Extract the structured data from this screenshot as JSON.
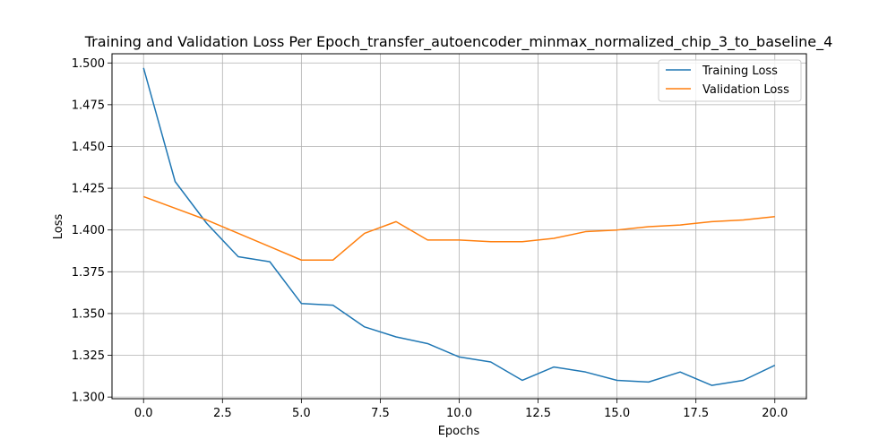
{
  "chart_data": {
    "type": "line",
    "title": "Training and Validation Loss Per Epoch_transfer_autoencoder_minmax_normalized_chip_3_to_baseline_4",
    "xlabel": "Epochs",
    "ylabel": "Loss",
    "xlim": [
      -1.0,
      21.0
    ],
    "ylim": [
      1.299,
      1.5055
    ],
    "xticks": [
      0.0,
      2.5,
      5.0,
      7.5,
      10.0,
      12.5,
      15.0,
      17.5,
      20.0
    ],
    "xtick_labels": [
      "0.0",
      "2.5",
      "5.0",
      "7.5",
      "10.0",
      "12.5",
      "15.0",
      "17.5",
      "20.0"
    ],
    "yticks": [
      1.3,
      1.325,
      1.35,
      1.375,
      1.4,
      1.425,
      1.45,
      1.475,
      1.5
    ],
    "ytick_labels": [
      "1.300",
      "1.325",
      "1.350",
      "1.375",
      "1.400",
      "1.425",
      "1.450",
      "1.475",
      "1.500"
    ],
    "grid": true,
    "legend_position": "top-right",
    "x": [
      0,
      1,
      2,
      3,
      4,
      5,
      6,
      7,
      8,
      9,
      10,
      11,
      12,
      13,
      14,
      15,
      16,
      17,
      18,
      19,
      20
    ],
    "series": [
      {
        "name": "Training Loss",
        "color": "#1f77b4",
        "values": [
          1.497,
          1.429,
          1.404,
          1.384,
          1.381,
          1.356,
          1.355,
          1.342,
          1.336,
          1.332,
          1.324,
          1.321,
          1.31,
          1.318,
          1.315,
          1.31,
          1.309,
          1.315,
          1.307,
          1.31,
          1.319
        ]
      },
      {
        "name": "Validation Loss",
        "color": "#ff7f0e",
        "values": [
          1.42,
          1.413,
          1.406,
          1.398,
          1.39,
          1.382,
          1.382,
          1.398,
          1.405,
          1.394,
          1.394,
          1.393,
          1.393,
          1.395,
          1.399,
          1.4,
          1.402,
          1.403,
          1.405,
          1.406,
          1.408
        ]
      }
    ]
  }
}
